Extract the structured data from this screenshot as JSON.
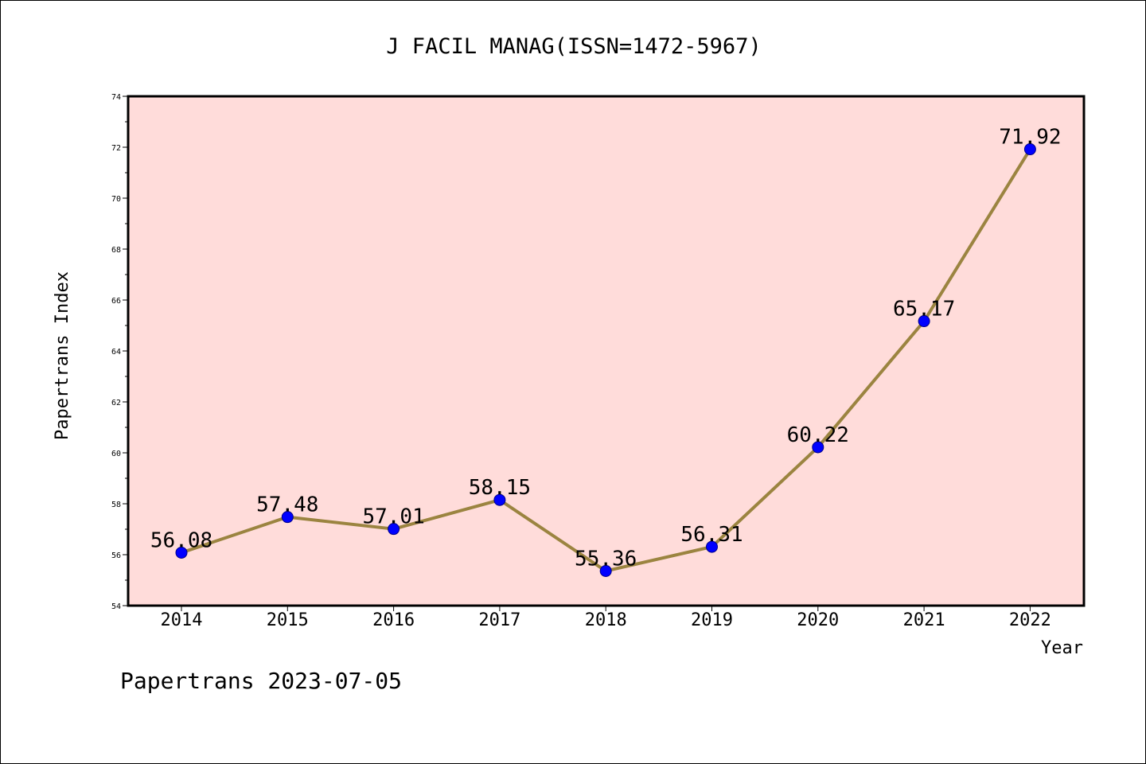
{
  "chart_data": {
    "type": "line",
    "title": "J FACIL MANAG(ISSN=1472-5967)",
    "xlabel": "Year",
    "ylabel": "Papertrans Index",
    "categories": [
      "2014",
      "2015",
      "2016",
      "2017",
      "2018",
      "2019",
      "2020",
      "2021",
      "2022"
    ],
    "values": [
      56.08,
      57.48,
      57.01,
      58.15,
      55.36,
      56.31,
      60.22,
      65.17,
      71.92
    ],
    "data_labels": [
      "56.08",
      "57.48",
      "57.01",
      "58.15",
      "55.36",
      "56.31",
      "60.22",
      "65.17",
      "71.92"
    ],
    "ylim": [
      54,
      74
    ],
    "yticks": [
      "54",
      "56",
      "58",
      "60",
      "62",
      "64",
      "66",
      "68",
      "70",
      "72",
      "74"
    ],
    "grid": false,
    "colors": {
      "plot_background": "#FFDCDA",
      "line": "#9B8440",
      "marker": "#0000FF"
    }
  },
  "footer": {
    "text": "Papertrans 2023-07-05"
  }
}
